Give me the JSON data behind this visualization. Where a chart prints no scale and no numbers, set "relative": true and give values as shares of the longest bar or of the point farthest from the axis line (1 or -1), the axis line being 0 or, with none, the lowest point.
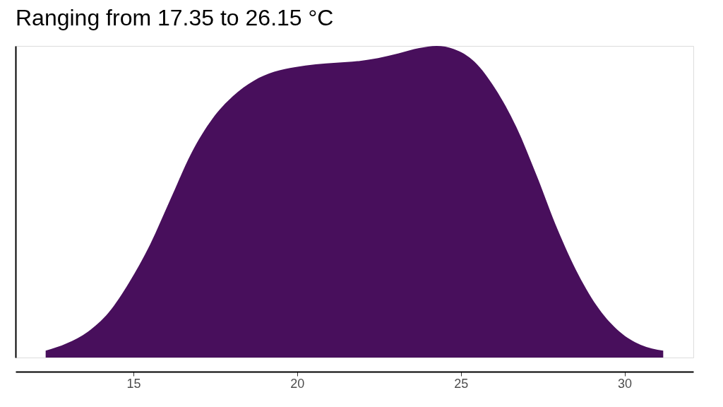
{
  "chart_data": {
    "type": "area",
    "title": "Ranging from 17.35 to 26.15 °C",
    "relative": true,
    "x": [
      12.32,
      12.97,
      13.61,
      14.24,
      14.87,
      15.51,
      16.14,
      16.77,
      17.41,
      18.04,
      18.67,
      19.3,
      19.94,
      20.57,
      21.2,
      21.84,
      22.47,
      23.1,
      23.73,
      24.26,
      24.79,
      25.42,
      26.05,
      26.69,
      27.32,
      27.95,
      28.59,
      29.22,
      29.85,
      30.49,
      31.18
    ],
    "series": [
      {
        "color": "#480f5c",
        "values": [
          0.022,
          0.046,
          0.083,
          0.144,
          0.241,
          0.363,
          0.51,
          0.656,
          0.766,
          0.839,
          0.888,
          0.917,
          0.932,
          0.941,
          0.946,
          0.951,
          0.961,
          0.976,
          0.993,
          1.0,
          0.99,
          0.949,
          0.863,
          0.741,
          0.583,
          0.412,
          0.266,
          0.156,
          0.083,
          0.041,
          0.022
        ]
      }
    ],
    "xlim": [
      11.4,
      32.1
    ],
    "xticks": [
      15,
      20,
      25,
      30
    ],
    "grid": false
  }
}
